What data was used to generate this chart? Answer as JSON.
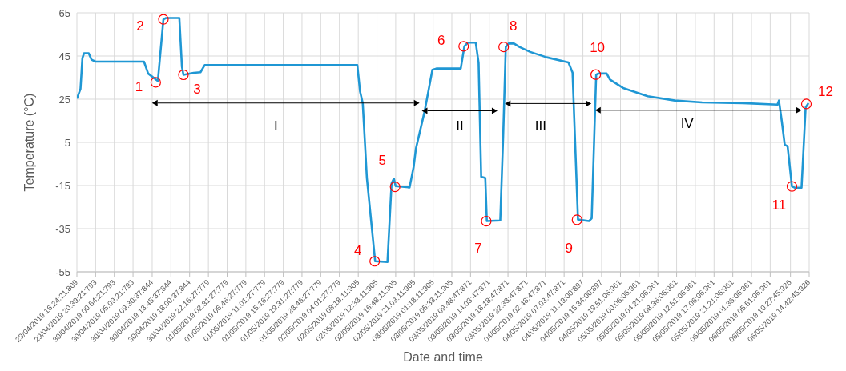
{
  "chart_data": {
    "type": "line",
    "xlabel": "Date and time",
    "ylabel": "Temperature (°C)",
    "xlim": [
      "2019-04-29T16:24",
      "2019-05-06T14:42"
    ],
    "xticks": [
      {
        "value": "2019-04-29T16:24",
        "label": "29/04/2019 16:24:21:809"
      },
      {
        "value": "2019-04-29T20:39",
        "label": "29/04/2019 20:39:21:793"
      },
      {
        "value": "2019-04-30T00:54",
        "label": "30/04/2019 00:54:21:793"
      },
      {
        "value": "2019-04-30T05:09",
        "label": "30/04/2019 05:09:21:793"
      },
      {
        "value": "2019-04-30T09:30",
        "label": "30/04/2019 09:30:37:844"
      },
      {
        "value": "2019-04-30T13:45",
        "label": "30/04/2019 13:45:37:844"
      },
      {
        "value": "2019-04-30T18:00",
        "label": "30/04/2019 18:00:37:844"
      },
      {
        "value": "2019-04-30T22:16",
        "label": "30/04/2019 22:16:27:779"
      },
      {
        "value": "2019-05-01T02:31",
        "label": "01/05/2019 02:31:27:779"
      },
      {
        "value": "2019-05-01T06:46",
        "label": "01/05/2019 06:46:27:779"
      },
      {
        "value": "2019-05-01T11:01",
        "label": "01/05/2019 11:01:27:779"
      },
      {
        "value": "2019-05-01T15:16",
        "label": "01/05/2019 15:16:27:779"
      },
      {
        "value": "2019-05-01T19:31",
        "label": "01/05/2019 19:31:27:779"
      },
      {
        "value": "2019-05-01T23:46",
        "label": "01/05/2019 23:46:27:779"
      },
      {
        "value": "2019-05-02T04:01",
        "label": "02/05/2019 04:01:27:779"
      },
      {
        "value": "2019-05-02T08:18",
        "label": "02/05/2019 08:18:11:905"
      },
      {
        "value": "2019-05-02T12:33",
        "label": "02/05/2019 12:33:11:905"
      },
      {
        "value": "2019-05-02T16:48",
        "label": "02/05/2019 16:48:11:905"
      },
      {
        "value": "2019-05-02T21:03",
        "label": "02/05/2019 21:03:11:905"
      },
      {
        "value": "2019-05-03T01:18",
        "label": "03/05/2019 01:18:11:905"
      },
      {
        "value": "2019-05-03T05:33",
        "label": "03/05/2019 05:33:11:905"
      },
      {
        "value": "2019-05-03T09:48",
        "label": "03/05/2019 09:48:47:871"
      },
      {
        "value": "2019-05-03T14:03",
        "label": "03/05/2019 14:03:47:871"
      },
      {
        "value": "2019-05-03T18:18",
        "label": "03/05/2019 18:18:47:871"
      },
      {
        "value": "2019-05-03T22:33",
        "label": "03/05/2019 22:33:47:871"
      },
      {
        "value": "2019-05-04T02:48",
        "label": "04/05/2019 02:48:47:871"
      },
      {
        "value": "2019-05-04T07:03",
        "label": "04/05/2019 07:03:47:871"
      },
      {
        "value": "2019-05-04T11:19",
        "label": "04/05/2019 11:19:00:897"
      },
      {
        "value": "2019-05-04T15:34",
        "label": "04/05/2019 15:34:00:897"
      },
      {
        "value": "2019-05-04T19:51",
        "label": "04/05/2019 19:51:06:961"
      },
      {
        "value": "2019-05-05T00:06",
        "label": "05/05/2019 00:06:06:961"
      },
      {
        "value": "2019-05-05T04:21",
        "label": "05/05/2019 04:21:06:961"
      },
      {
        "value": "2019-05-05T08:36",
        "label": "05/05/2019 08:36:06:961"
      },
      {
        "value": "2019-05-05T12:51",
        "label": "05/05/2019 12:51:06:961"
      },
      {
        "value": "2019-05-05T17:06",
        "label": "05/05/2019 17:06:06:961"
      },
      {
        "value": "2019-05-05T21:21",
        "label": "05/05/2019 21:21:06:961"
      },
      {
        "value": "2019-05-06T01:36",
        "label": "06/05/2019 01:36:06:961"
      },
      {
        "value": "2019-05-06T05:51",
        "label": "06/05/2019 05:51:06:961"
      },
      {
        "value": "2019-05-06T10:27",
        "label": "06/05/2019 10:27:45:926"
      },
      {
        "value": "2019-05-06T14:42",
        "label": "06/05/2019 14:42:45:926"
      }
    ],
    "ylim": [
      -55,
      65
    ],
    "yticks": [
      -55,
      -35,
      -15,
      5,
      25,
      45,
      65
    ],
    "grid": true,
    "legend": false,
    "marker": "none",
    "line_style": "solid",
    "series": [
      {
        "color": "#1f97d4",
        "x": [
          "2019-04-29T16:24",
          "2019-04-29T17:13",
          "2019-04-29T17:39",
          "2019-04-29T18:01",
          "2019-04-29T19:05",
          "2019-04-29T19:43",
          "2019-04-29T20:39",
          "2019-04-30T07:38",
          "2019-04-30T08:35",
          "2019-04-30T10:47",
          "2019-04-30T12:03",
          "2019-04-30T12:39",
          "2019-04-30T15:40",
          "2019-04-30T16:15",
          "2019-04-30T16:36",
          "2019-04-30T18:54",
          "2019-04-30T20:28",
          "2019-04-30T21:25",
          "2019-05-02T08:05",
          "2019-05-02T08:43",
          "2019-05-02T09:19",
          "2019-05-02T10:15",
          "2019-05-02T12:08",
          "2019-05-02T14:56",
          "2019-05-02T15:52",
          "2019-05-02T16:23",
          "2019-05-02T16:48",
          "2019-05-02T19:57",
          "2019-05-02T20:53",
          "2019-05-02T21:23",
          "2019-05-02T23:23",
          "2019-05-03T01:08",
          "2019-05-03T02:02",
          "2019-05-03T07:35",
          "2019-05-03T08:24",
          "2019-05-03T09:10",
          "2019-05-03T10:59",
          "2019-05-03T11:38",
          "2019-05-03T12:13",
          "2019-05-03T13:09",
          "2019-05-03T13:30",
          "2019-05-03T16:33",
          "2019-05-03T17:12",
          "2019-05-03T17:48",
          "2019-05-03T18:26",
          "2019-05-03T19:40",
          "2019-05-03T20:54",
          "2019-05-03T23:21",
          "2019-05-04T03:06",
          "2019-05-04T08:02",
          "2019-05-04T08:58",
          "2019-05-04T10:12",
          "2019-05-04T12:41",
          "2019-05-04T13:19",
          "2019-05-04T14:20",
          "2019-05-04T14:51",
          "2019-05-04T16:43",
          "2019-05-04T17:27",
          "2019-05-04T20:27",
          "2019-05-05T02:01",
          "2019-05-05T08:11",
          "2019-05-05T14:23",
          "2019-05-05T23:39",
          "2019-05-06T07:30",
          "2019-05-06T07:50",
          "2019-05-06T08:29",
          "2019-05-06T09:09",
          "2019-05-06T09:48",
          "2019-05-06T10:47",
          "2019-05-06T11:23",
          "2019-05-06T12:58",
          "2019-05-06T13:54",
          "2019-05-06T14:32"
        ],
        "values": [
          25.3,
          29.8,
          44.0,
          46.3,
          46.3,
          43.3,
          42.4,
          42.4,
          36.9,
          33.4,
          62.0,
          62.6,
          62.6,
          40.1,
          36.3,
          37.2,
          37.5,
          40.8,
          40.8,
          28.5,
          23.1,
          -11.4,
          -50.1,
          -50.4,
          -14.0,
          -11.8,
          -15.3,
          -15.9,
          -6.3,
          2.0,
          19.5,
          38.6,
          39.2,
          39.2,
          49.5,
          51.2,
          51.2,
          41.8,
          -10.9,
          -11.5,
          -31.5,
          -31.2,
          7.1,
          49.2,
          50.8,
          50.8,
          49.2,
          46.9,
          44.4,
          42.0,
          37.3,
          -30.8,
          -31.5,
          -30.2,
          36.4,
          36.9,
          36.9,
          34.1,
          30.2,
          26.4,
          24.4,
          23.5,
          23.2,
          22.5,
          24.4,
          14.8,
          3.9,
          3.2,
          -15.4,
          -16.0,
          -16.0,
          21.2,
          23.2
        ]
      }
    ],
    "annotations": [
      {
        "text": "1",
        "x": "2019-04-30T10:18",
        "y": 32.8
      },
      {
        "text": "2",
        "x": "2019-04-30T12:03",
        "y": 62.0
      },
      {
        "text": "3",
        "x": "2019-04-30T16:36",
        "y": 36.3
      },
      {
        "text": "4",
        "x": "2019-05-02T12:02",
        "y": -50.1
      },
      {
        "text": "5",
        "x": "2019-05-02T16:40",
        "y": -15.6
      },
      {
        "text": "6",
        "x": "2019-05-03T08:14",
        "y": 49.5
      },
      {
        "text": "7",
        "x": "2019-05-03T13:22",
        "y": -31.5
      },
      {
        "text": "8",
        "x": "2019-05-03T17:19",
        "y": 49.2
      },
      {
        "text": "9",
        "x": "2019-05-04T09:59",
        "y": -30.9
      },
      {
        "text": "10",
        "x": "2019-05-04T14:14",
        "y": 36.4
      },
      {
        "text": "11",
        "x": "2019-05-06T10:47",
        "y": -15.4
      },
      {
        "text": "12",
        "x": "2019-05-06T14:04",
        "y": 22.8
      },
      "I",
      "II",
      "III",
      "IV"
    ]
  }
}
